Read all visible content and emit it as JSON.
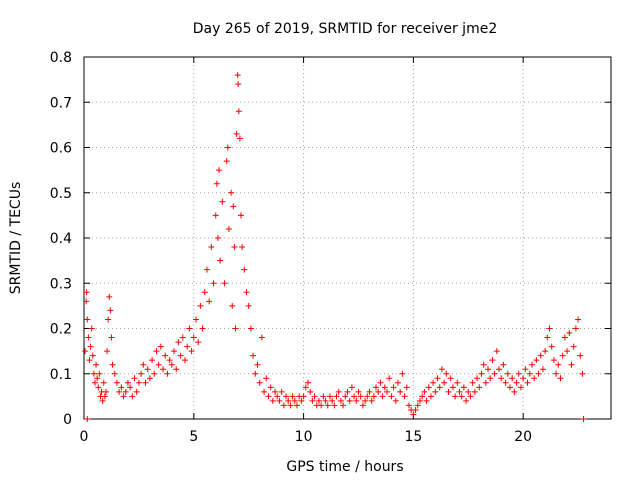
{
  "chart_data": {
    "type": "scatter",
    "title": "Day 265 of 2019, SRMTID for receiver jme2",
    "xlabel": "GPS time / hours",
    "ylabel": "SRMTID / TECUs",
    "xlim": [
      0,
      24
    ],
    "ylim": [
      0,
      0.8
    ],
    "xticks": [
      0,
      5,
      10,
      15,
      20
    ],
    "xtick_labels": [
      "0",
      "5",
      "10",
      "15",
      "20"
    ],
    "yticks": [
      0,
      0.1,
      0.2,
      0.3,
      0.4,
      0.5,
      0.6,
      0.7,
      0.8
    ],
    "ytick_labels": [
      "0",
      "0.1",
      "0.2",
      "0.3",
      "0.4",
      "0.5",
      "0.6",
      "0.7",
      "0.8"
    ],
    "grid": true,
    "marker": "+",
    "color": "#ff0000",
    "series": [
      {
        "name": "SRMTID",
        "points": [
          [
            0.05,
            0.15
          ],
          [
            0.1,
            0.26
          ],
          [
            0.12,
            0.28
          ],
          [
            0.15,
            0.22
          ],
          [
            0.2,
            0.18
          ],
          [
            0.25,
            0.13
          ],
          [
            0.3,
            0.16
          ],
          [
            0.35,
            0.2
          ],
          [
            0.4,
            0.14
          ],
          [
            0.45,
            0.1
          ],
          [
            0.5,
            0.08
          ],
          [
            0.55,
            0.12
          ],
          [
            0.6,
            0.09
          ],
          [
            0.65,
            0.07
          ],
          [
            0.7,
            0.1
          ],
          [
            0.75,
            0.05
          ],
          [
            0.8,
            0.06
          ],
          [
            0.85,
            0.04
          ],
          [
            0.9,
            0.08
          ],
          [
            0.95,
            0.05
          ],
          [
            1.0,
            0.06
          ],
          [
            1.05,
            0.15
          ],
          [
            1.1,
            0.22
          ],
          [
            1.15,
            0.27
          ],
          [
            1.2,
            0.24
          ],
          [
            1.25,
            0.18
          ],
          [
            1.3,
            0.12
          ],
          [
            1.4,
            0.1
          ],
          [
            1.5,
            0.08
          ],
          [
            1.6,
            0.06
          ],
          [
            1.7,
            0.07
          ],
          [
            1.8,
            0.05
          ],
          [
            1.9,
            0.06
          ],
          [
            2.0,
            0.08
          ],
          [
            2.1,
            0.07
          ],
          [
            2.2,
            0.05
          ],
          [
            2.3,
            0.09
          ],
          [
            2.4,
            0.06
          ],
          [
            2.5,
            0.08
          ],
          [
            2.6,
            0.1
          ],
          [
            2.7,
            0.12
          ],
          [
            2.8,
            0.08
          ],
          [
            2.9,
            0.11
          ],
          [
            3.0,
            0.09
          ],
          [
            3.1,
            0.13
          ],
          [
            3.2,
            0.1
          ],
          [
            3.3,
            0.15
          ],
          [
            3.4,
            0.12
          ],
          [
            3.5,
            0.16
          ],
          [
            3.6,
            0.11
          ],
          [
            3.7,
            0.14
          ],
          [
            3.8,
            0.1
          ],
          [
            3.9,
            0.13
          ],
          [
            4.0,
            0.12
          ],
          [
            4.1,
            0.15
          ],
          [
            4.2,
            0.11
          ],
          [
            4.3,
            0.17
          ],
          [
            4.4,
            0.14
          ],
          [
            4.5,
            0.18
          ],
          [
            4.6,
            0.13
          ],
          [
            4.7,
            0.16
          ],
          [
            4.8,
            0.2
          ],
          [
            4.9,
            0.15
          ],
          [
            5.0,
            0.18
          ],
          [
            5.1,
            0.22
          ],
          [
            5.2,
            0.17
          ],
          [
            5.3,
            0.25
          ],
          [
            5.4,
            0.2
          ],
          [
            5.5,
            0.28
          ],
          [
            5.6,
            0.33
          ],
          [
            5.7,
            0.26
          ],
          [
            5.8,
            0.38
          ],
          [
            5.9,
            0.3
          ],
          [
            6.0,
            0.45
          ],
          [
            6.05,
            0.52
          ],
          [
            6.1,
            0.4
          ],
          [
            6.15,
            0.55
          ],
          [
            6.2,
            0.35
          ],
          [
            6.3,
            0.48
          ],
          [
            6.4,
            0.3
          ],
          [
            6.5,
            0.57
          ],
          [
            6.55,
            0.6
          ],
          [
            6.6,
            0.42
          ],
          [
            6.7,
            0.5
          ],
          [
            6.75,
            0.25
          ],
          [
            6.8,
            0.47
          ],
          [
            6.85,
            0.38
          ],
          [
            6.9,
            0.2
          ],
          [
            6.95,
            0.63
          ],
          [
            7.0,
            0.76
          ],
          [
            7.02,
            0.74
          ],
          [
            7.05,
            0.68
          ],
          [
            7.1,
            0.62
          ],
          [
            7.15,
            0.45
          ],
          [
            7.2,
            0.38
          ],
          [
            7.3,
            0.33
          ],
          [
            7.4,
            0.28
          ],
          [
            7.5,
            0.25
          ],
          [
            7.6,
            0.2
          ],
          [
            7.7,
            0.14
          ],
          [
            7.8,
            0.1
          ],
          [
            7.9,
            0.12
          ],
          [
            8.0,
            0.08
          ],
          [
            8.1,
            0.18
          ],
          [
            8.2,
            0.06
          ],
          [
            8.3,
            0.09
          ],
          [
            8.4,
            0.05
          ],
          [
            8.5,
            0.07
          ],
          [
            8.6,
            0.04
          ],
          [
            8.7,
            0.06
          ],
          [
            8.8,
            0.05
          ],
          [
            8.9,
            0.04
          ],
          [
            9.0,
            0.06
          ],
          [
            9.1,
            0.03
          ],
          [
            9.2,
            0.05
          ],
          [
            9.3,
            0.04
          ],
          [
            9.4,
            0.03
          ],
          [
            9.5,
            0.05
          ],
          [
            9.6,
            0.04
          ],
          [
            9.7,
            0.03
          ],
          [
            9.8,
            0.05
          ],
          [
            9.9,
            0.04
          ],
          [
            10.0,
            0.05
          ],
          [
            10.1,
            0.07
          ],
          [
            10.2,
            0.08
          ],
          [
            10.3,
            0.06
          ],
          [
            10.4,
            0.04
          ],
          [
            10.5,
            0.05
          ],
          [
            10.6,
            0.03
          ],
          [
            10.7,
            0.04
          ],
          [
            10.8,
            0.03
          ],
          [
            10.9,
            0.05
          ],
          [
            11.0,
            0.04
          ],
          [
            11.1,
            0.03
          ],
          [
            11.2,
            0.05
          ],
          [
            11.3,
            0.04
          ],
          [
            11.4,
            0.03
          ],
          [
            11.5,
            0.05
          ],
          [
            11.6,
            0.06
          ],
          [
            11.7,
            0.04
          ],
          [
            11.8,
            0.03
          ],
          [
            11.9,
            0.05
          ],
          [
            12.0,
            0.06
          ],
          [
            12.1,
            0.04
          ],
          [
            12.2,
            0.07
          ],
          [
            12.3,
            0.05
          ],
          [
            12.4,
            0.04
          ],
          [
            12.5,
            0.06
          ],
          [
            12.6,
            0.05
          ],
          [
            12.7,
            0.03
          ],
          [
            12.8,
            0.04
          ],
          [
            12.9,
            0.05
          ],
          [
            13.0,
            0.06
          ],
          [
            13.1,
            0.04
          ],
          [
            13.2,
            0.05
          ],
          [
            13.3,
            0.07
          ],
          [
            13.4,
            0.06
          ],
          [
            13.5,
            0.08
          ],
          [
            13.6,
            0.05
          ],
          [
            13.7,
            0.07
          ],
          [
            13.8,
            0.06
          ],
          [
            13.9,
            0.09
          ],
          [
            14.0,
            0.05
          ],
          [
            14.1,
            0.07
          ],
          [
            14.2,
            0.04
          ],
          [
            14.3,
            0.08
          ],
          [
            14.4,
            0.06
          ],
          [
            14.5,
            0.1
          ],
          [
            14.6,
            0.05
          ],
          [
            14.7,
            0.07
          ],
          [
            14.8,
            0.03
          ],
          [
            14.9,
            0.02
          ],
          [
            15.0,
            0.01
          ],
          [
            15.1,
            0.02
          ],
          [
            15.2,
            0.03
          ],
          [
            15.3,
            0.04
          ],
          [
            15.4,
            0.05
          ],
          [
            15.5,
            0.06
          ],
          [
            15.6,
            0.04
          ],
          [
            15.7,
            0.07
          ],
          [
            15.8,
            0.05
          ],
          [
            15.9,
            0.08
          ],
          [
            16.0,
            0.06
          ],
          [
            16.1,
            0.09
          ],
          [
            16.2,
            0.07
          ],
          [
            16.3,
            0.11
          ],
          [
            16.4,
            0.08
          ],
          [
            16.5,
            0.1
          ],
          [
            16.6,
            0.06
          ],
          [
            16.7,
            0.09
          ],
          [
            16.8,
            0.07
          ],
          [
            16.9,
            0.05
          ],
          [
            17.0,
            0.08
          ],
          [
            17.1,
            0.06
          ],
          [
            17.2,
            0.05
          ],
          [
            17.3,
            0.07
          ],
          [
            17.4,
            0.04
          ],
          [
            17.5,
            0.06
          ],
          [
            17.6,
            0.05
          ],
          [
            17.7,
            0.08
          ],
          [
            17.8,
            0.06
          ],
          [
            17.9,
            0.09
          ],
          [
            18.0,
            0.07
          ],
          [
            18.1,
            0.1
          ],
          [
            18.2,
            0.12
          ],
          [
            18.3,
            0.08
          ],
          [
            18.4,
            0.11
          ],
          [
            18.5,
            0.09
          ],
          [
            18.6,
            0.13
          ],
          [
            18.7,
            0.1
          ],
          [
            18.8,
            0.15
          ],
          [
            18.9,
            0.11
          ],
          [
            19.0,
            0.09
          ],
          [
            19.1,
            0.12
          ],
          [
            19.2,
            0.08
          ],
          [
            19.3,
            0.1
          ],
          [
            19.4,
            0.07
          ],
          [
            19.5,
            0.09
          ],
          [
            19.6,
            0.06
          ],
          [
            19.7,
            0.08
          ],
          [
            19.8,
            0.1
          ],
          [
            19.9,
            0.07
          ],
          [
            20.0,
            0.09
          ],
          [
            20.1,
            0.11
          ],
          [
            20.2,
            0.08
          ],
          [
            20.3,
            0.1
          ],
          [
            20.4,
            0.12
          ],
          [
            20.5,
            0.09
          ],
          [
            20.6,
            0.13
          ],
          [
            20.7,
            0.1
          ],
          [
            20.8,
            0.14
          ],
          [
            20.9,
            0.11
          ],
          [
            21.0,
            0.15
          ],
          [
            21.1,
            0.18
          ],
          [
            21.2,
            0.2
          ],
          [
            21.3,
            0.16
          ],
          [
            21.4,
            0.13
          ],
          [
            21.5,
            0.1
          ],
          [
            21.6,
            0.12
          ],
          [
            21.7,
            0.09
          ],
          [
            21.8,
            0.14
          ],
          [
            21.9,
            0.18
          ],
          [
            22.0,
            0.15
          ],
          [
            22.1,
            0.19
          ],
          [
            22.2,
            0.12
          ],
          [
            22.3,
            0.16
          ],
          [
            22.4,
            0.2
          ],
          [
            22.5,
            0.22
          ],
          [
            22.6,
            0.14
          ],
          [
            22.7,
            0.1
          ],
          [
            22.75,
            0.0
          ],
          [
            0.15,
            0.0
          ]
        ]
      }
    ]
  }
}
